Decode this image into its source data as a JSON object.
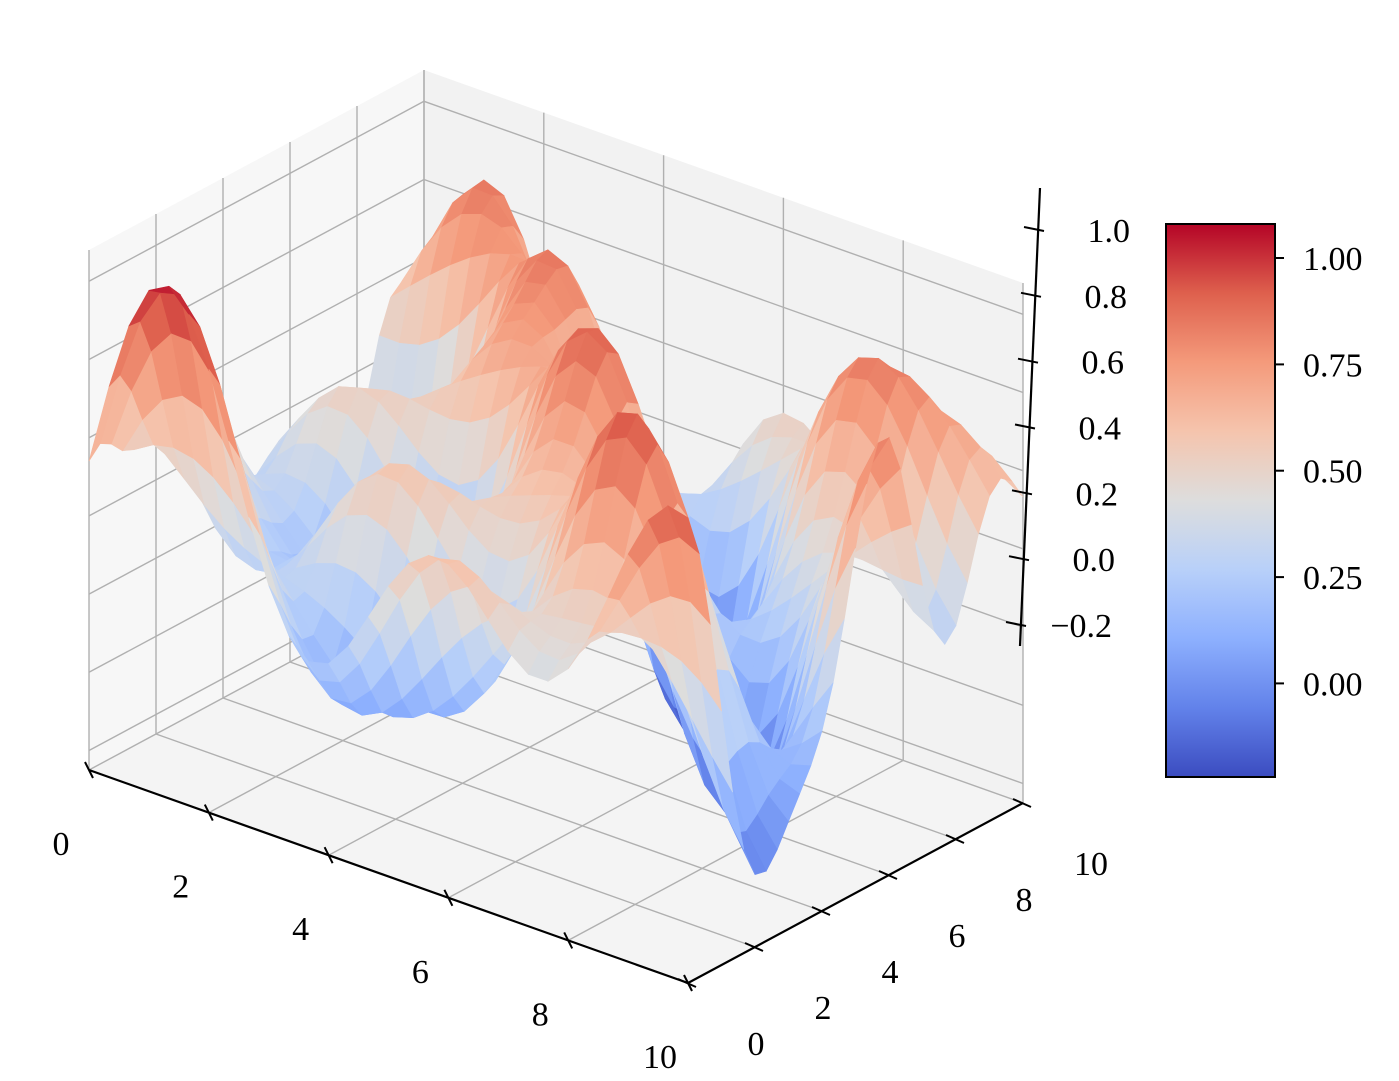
{
  "chart_data": {
    "type": "surface3d",
    "title": "",
    "xlabel": "",
    "ylabel": "",
    "zlabel": "",
    "xlim": [
      0,
      10
    ],
    "ylim": [
      0,
      10
    ],
    "zlim": [
      -0.25,
      1.08
    ],
    "grid": true,
    "colormap": "coolwarm",
    "x_ticks": [
      "0",
      "2",
      "4",
      "6",
      "8",
      "10"
    ],
    "y_ticks": [
      "0",
      "2",
      "4",
      "6",
      "8",
      "10"
    ],
    "z_ticks": [
      "−0.2",
      "0.0",
      "0.2",
      "0.4",
      "0.6",
      "0.8",
      "1.0"
    ],
    "surface": {
      "formula": "z = 0.42 + 0.3*sin(1.4*x)*cos(1.2*y) + 0.25*sin(0.9*x + 0.7*y) + 0.12*cos(2.1*y)",
      "grid_points": 31
    },
    "colorbar": {
      "vmin": -0.22,
      "vmax": 1.08,
      "ticks": [
        0.0,
        0.25,
        0.5,
        0.75,
        1.0
      ],
      "tick_labels": [
        "0.00",
        "0.25",
        "0.50",
        "0.75",
        "1.00"
      ]
    },
    "colors": {
      "cmap_low": "#3b4cc0",
      "cmap_mid": "#dddddd",
      "cmap_high": "#b40426",
      "pane_left": "#f7f7f7",
      "pane_back": "#f2f2f2",
      "pane_floor": "#f4f4f4",
      "grid": "#b0b0b0"
    }
  }
}
